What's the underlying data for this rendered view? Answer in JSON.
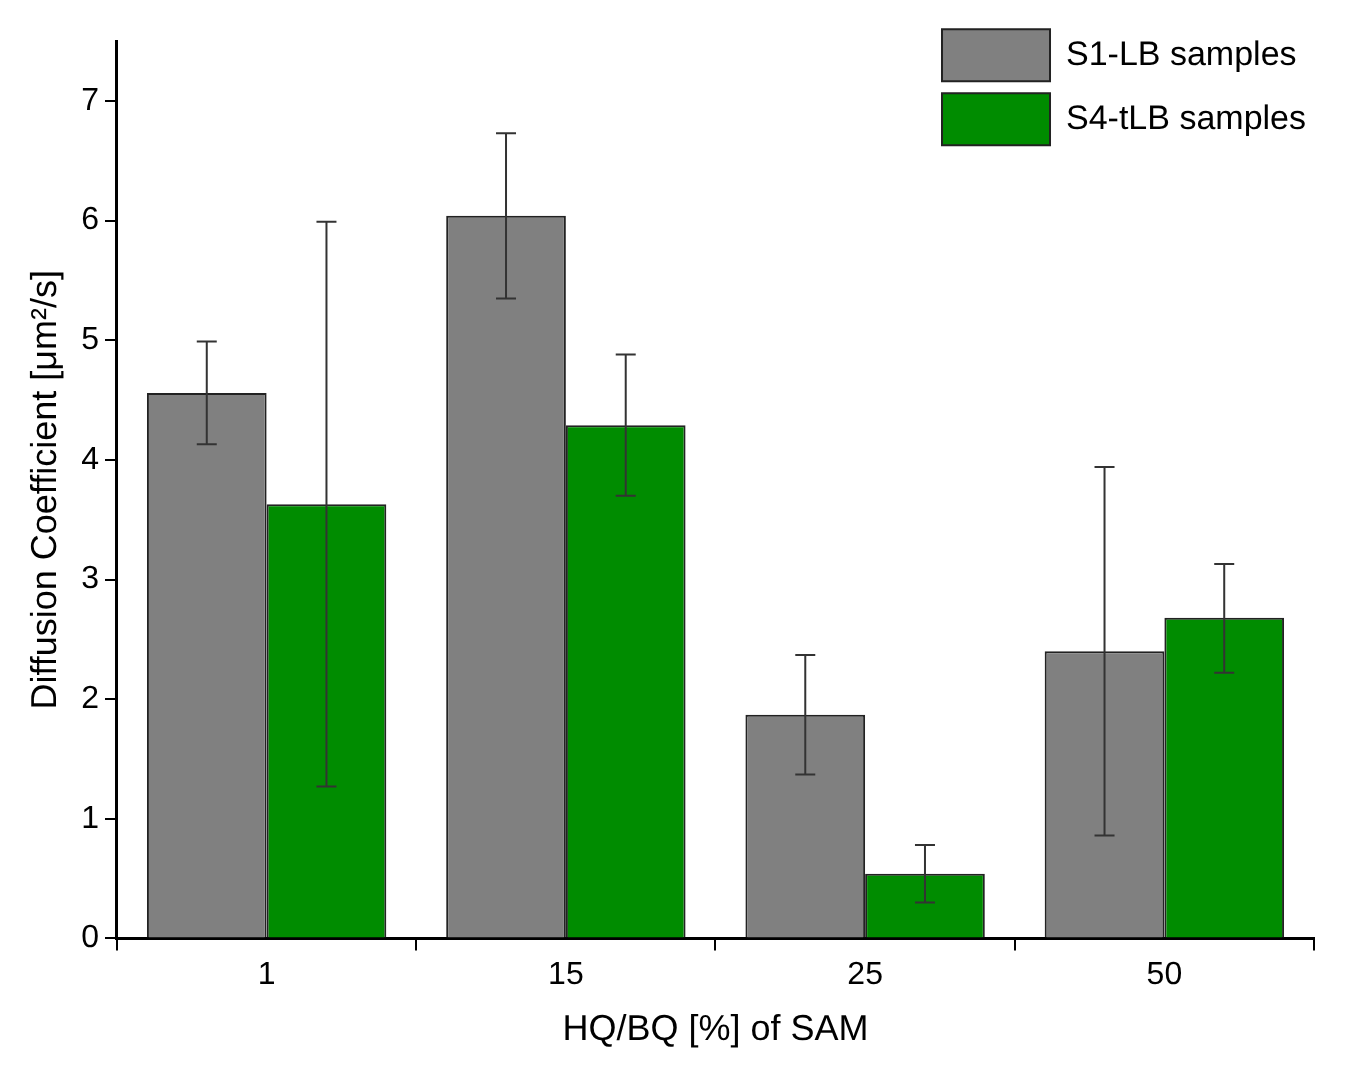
{
  "chart_data": {
    "type": "bar",
    "xlabel": "HQ/BQ [%] of SAM",
    "ylabel": "Diffusion Coefficient [μm²/s]",
    "categories": [
      "1",
      "15",
      "25",
      "50"
    ],
    "series": [
      {
        "name": "S1-LB samples",
        "color": "#808080",
        "values": [
          4.56,
          6.04,
          1.87,
          2.4
        ],
        "errors": [
          [
            4.13,
            4.99
          ],
          [
            5.35,
            6.73
          ],
          [
            1.37,
            2.37
          ],
          [
            0.86,
            3.94
          ]
        ]
      },
      {
        "name": "S4-tLB samples",
        "color": "#008c00",
        "values": [
          3.63,
          4.29,
          0.54,
          2.68
        ],
        "errors": [
          [
            1.27,
            5.99
          ],
          [
            3.7,
            4.88
          ],
          [
            0.3,
            0.78
          ],
          [
            2.22,
            3.13
          ]
        ]
      }
    ],
    "ylim": [
      0,
      7.5
    ],
    "yticks": [
      0,
      1,
      2,
      3,
      4,
      5,
      6,
      7
    ],
    "grid": false,
    "legend": "top right"
  }
}
